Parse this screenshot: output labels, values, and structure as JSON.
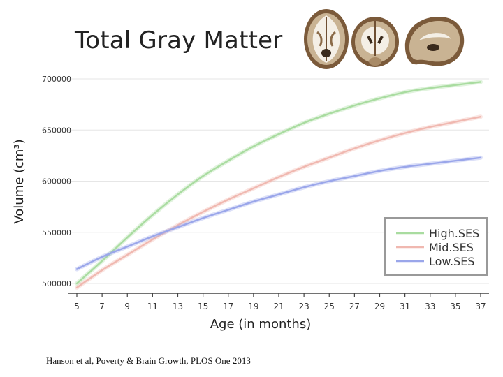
{
  "slide": {
    "title": "Total Gray Matter",
    "caption": "Hanson et al, Poverty & Brain Growth, PLOS One 2013",
    "brain_images": [
      "brain-axial-slice",
      "brain-coronal-slice",
      "brain-sagittal-slice"
    ]
  },
  "chart_data": {
    "type": "line",
    "xlabel": "Age (in months)",
    "ylabel": "Volume (cm³)",
    "xlim": [
      5,
      37
    ],
    "ylim": [
      500000,
      700000
    ],
    "xticks": [
      5,
      7,
      9,
      11,
      13,
      15,
      17,
      19,
      21,
      23,
      25,
      27,
      29,
      31,
      33,
      35,
      37
    ],
    "yticks": [
      500000,
      550000,
      600000,
      650000,
      700000
    ],
    "ytick_labels": [
      "500000",
      "550000",
      "600000",
      "650000",
      "700000"
    ],
    "grid": true,
    "legend_position": "bottom-right",
    "x": [
      5,
      7,
      9,
      11,
      13,
      15,
      17,
      19,
      21,
      23,
      25,
      27,
      29,
      31,
      33,
      35,
      37
    ],
    "series": [
      {
        "name": "High.SES",
        "color": "#a9dca0",
        "values": [
          500000,
          522000,
          545000,
          567000,
          587000,
          605000,
          620000,
          634000,
          646000,
          657000,
          666000,
          674000,
          681000,
          687000,
          691000,
          694000,
          697000
        ]
      },
      {
        "name": "Mid.SES",
        "color": "#f0b8b0",
        "values": [
          496000,
          513000,
          528000,
          543000,
          557000,
          570000,
          582000,
          593000,
          604000,
          614000,
          623000,
          632000,
          640000,
          647000,
          653000,
          658000,
          663000
        ]
      },
      {
        "name": "Low.SES",
        "color": "#9aa6ea",
        "values": [
          514000,
          526000,
          536000,
          546000,
          555000,
          564000,
          572000,
          580000,
          587000,
          594000,
          600000,
          605000,
          610000,
          614000,
          617000,
          620000,
          623000
        ]
      }
    ]
  }
}
